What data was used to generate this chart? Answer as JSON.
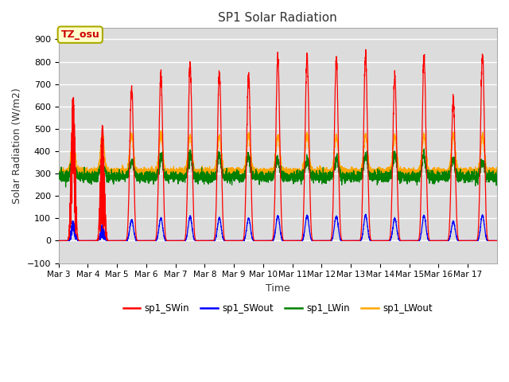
{
  "title": "SP1 Solar Radiation",
  "xlabel": "Time",
  "ylabel": "Solar Radiation (W/m2)",
  "ylim": [
    -100,
    950
  ],
  "yticks": [
    -100,
    0,
    100,
    200,
    300,
    400,
    500,
    600,
    700,
    800,
    900
  ],
  "background_color": "#dcdcdc",
  "annotation_text": "TZ_osu",
  "annotation_color": "#cc0000",
  "annotation_bg": "#ffffcc",
  "annotation_edge": "#aaaa00",
  "series": [
    "sp1_SWin",
    "sp1_SWout",
    "sp1_LWin",
    "sp1_LWout"
  ],
  "colors": [
    "red",
    "blue",
    "green",
    "orange"
  ],
  "num_days": 15,
  "start_day": 3,
  "points_per_day": 288,
  "sw_peaks": [
    640,
    500,
    680,
    740,
    790,
    750,
    740,
    820,
    830,
    810,
    830,
    730,
    820,
    630,
    840
  ],
  "lw_out_night": 310,
  "lw_out_day_peak": 470,
  "lw_in_base": 285,
  "lw_in_day_peak": 370,
  "sw_out_ratio": 0.135
}
